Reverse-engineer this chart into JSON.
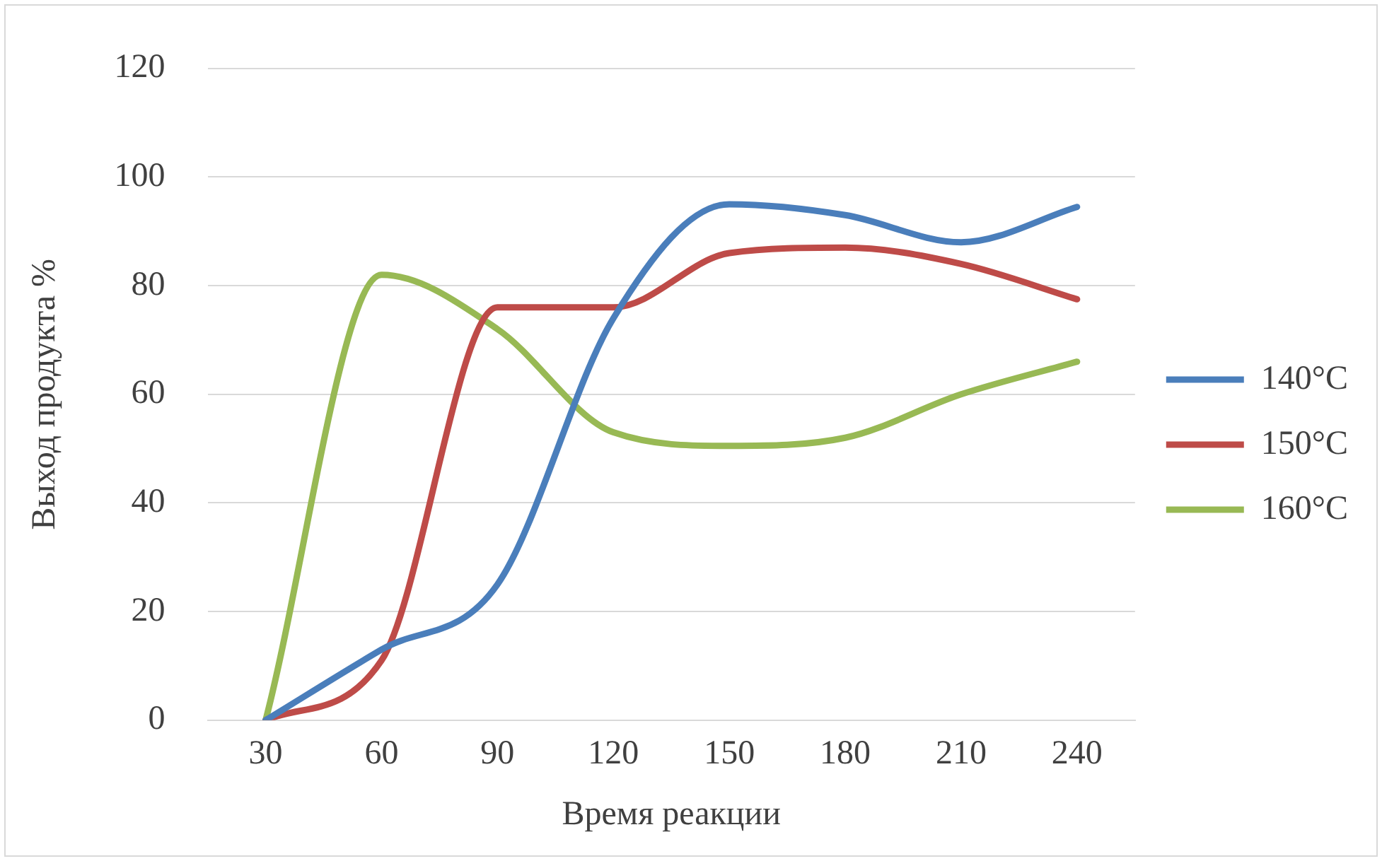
{
  "chart_data": {
    "type": "line",
    "xlabel": "Время реакции",
    "ylabel": "Выход продукта %",
    "categories": [
      "30",
      "60",
      "90",
      "120",
      "150",
      "180",
      "210",
      "240"
    ],
    "series": [
      {
        "name": "140°C",
        "color": "#4a7ebb",
        "values": [
          0,
          13,
          25,
          74,
          95,
          93,
          88,
          94.5
        ]
      },
      {
        "name": "150°C",
        "color": "#be4b48",
        "values": [
          0,
          11,
          76,
          76,
          86,
          87,
          84,
          77.5
        ]
      },
      {
        "name": "160°C",
        "color": "#98b954",
        "values": [
          0,
          82,
          72,
          53,
          50.5,
          52,
          60,
          66
        ]
      }
    ],
    "ylim": [
      0,
      120
    ],
    "yticks": [
      0,
      20,
      40,
      60,
      80,
      100,
      120
    ],
    "grid": "y",
    "legend": "right",
    "marker": "none"
  }
}
